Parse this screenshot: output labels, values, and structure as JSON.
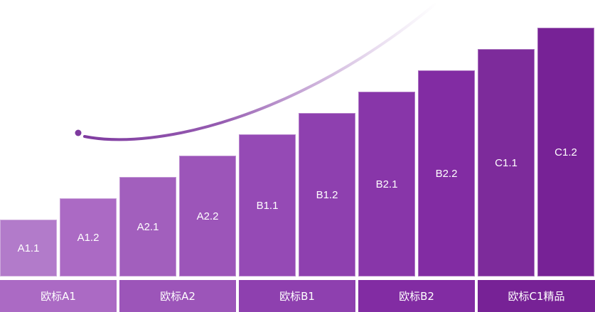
{
  "bars": [
    {
      "label": "A1.1",
      "level": 1,
      "color": "#b27bca"
    },
    {
      "label": "A1.2",
      "level": 2,
      "color": "#ab6ac4"
    },
    {
      "label": "A2.1",
      "level": 3,
      "color": "#a25fbd"
    },
    {
      "label": "A2.2",
      "level": 4,
      "color": "#9c55b9"
    },
    {
      "label": "B1.1",
      "level": 5,
      "color": "#954ab5"
    },
    {
      "label": "B1.2",
      "level": 6,
      "color": "#8e40af"
    },
    {
      "label": "B2.1",
      "level": 7,
      "color": "#8836a9"
    },
    {
      "label": "B2.2",
      "level": 8,
      "color": "#822ca3"
    },
    {
      "label": "C1.1",
      "level": 9,
      "color": "#7d2b9b"
    },
    {
      "label": "C1.2",
      "level": 10,
      "color": "#772296"
    }
  ],
  "groups": [
    {
      "label": "欧标A1",
      "color": "#ab6ac4"
    },
    {
      "label": "欧标A2",
      "color": "#9c55b9"
    },
    {
      "label": "欧标B1",
      "color": "#8e40af"
    },
    {
      "label": "欧标B2",
      "color": "#822ca3"
    },
    {
      "label": "欧标C1精品",
      "color": "#772296"
    }
  ],
  "curve_color": "#7e3a9f"
}
